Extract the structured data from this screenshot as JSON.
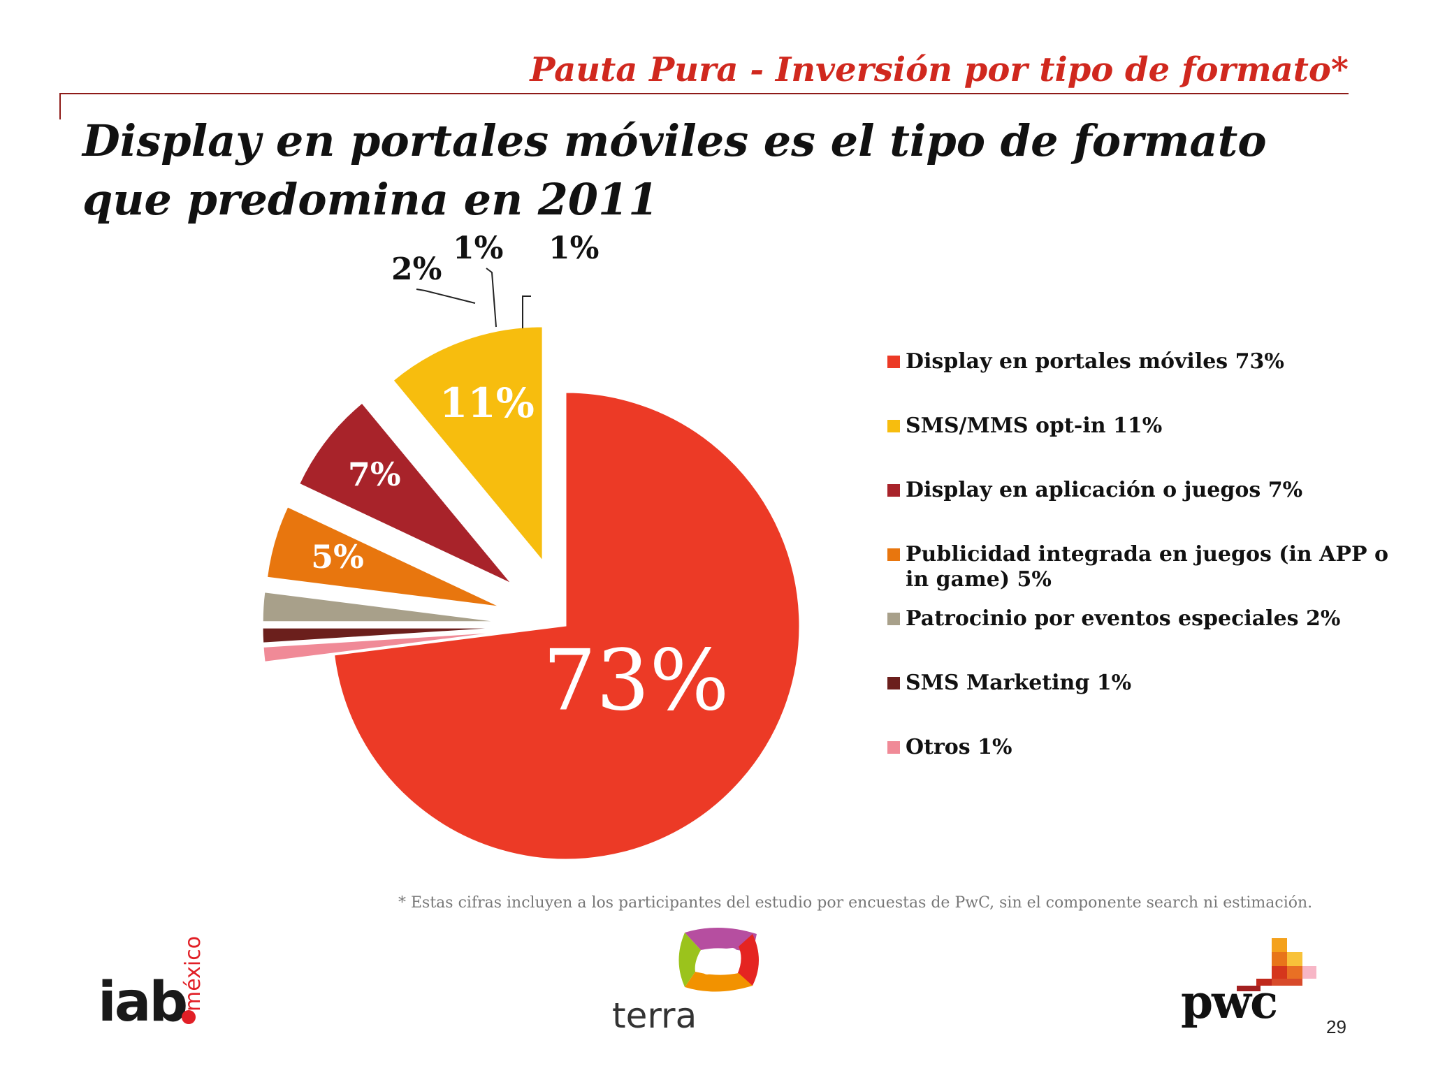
{
  "header": {
    "section_title": "Pauta Pura - Inversión por tipo de formato*",
    "headline_line1": "Display en portales móviles es el tipo de formato",
    "headline_line2": "que predomina en 2011"
  },
  "chart_data": {
    "type": "pie",
    "title": "",
    "exploded": true,
    "categories": [
      "Display en portales móviles",
      "Otros",
      "SMS Marketing",
      "Patrocinio por eventos especiales",
      "Publicidad integrada en juegos (in APP o in game)",
      "Display en aplicación o juegos",
      "SMS/MMS opt-in"
    ],
    "values": [
      73,
      1,
      1,
      2,
      5,
      7,
      11
    ],
    "labels": [
      "73%",
      "1%",
      "1%",
      "2%",
      "5%",
      "7%",
      "11%"
    ],
    "colors": [
      "#ec3a26",
      "#f08a97",
      "#6b1f1c",
      "#a8a08a",
      "#e8760e",
      "#a8232a",
      "#f7bd0e"
    ],
    "legend_position": "right"
  },
  "legend": [
    {
      "label": "Display en portales móviles 73%",
      "color": "#ec3a26"
    },
    {
      "label": "SMS/MMS opt-in 11%",
      "color": "#f7bd0e"
    },
    {
      "label": "Display en aplicación o juegos 7%",
      "color": "#a8232a"
    },
    {
      "label": "Publicidad integrada en juegos (in APP o in game) 5%",
      "color": "#e8760e"
    },
    {
      "label": "Patrocinio por eventos especiales 2%",
      "color": "#a8a08a"
    },
    {
      "label": "SMS Marketing 1%",
      "color": "#6b1f1c"
    },
    {
      "label": "Otros 1%",
      "color": "#f08a97"
    }
  ],
  "footnote": "* Estas cifras incluyen a los participantes del estudio por encuestas de PwC, sin el componente search ni estimación.",
  "logos": {
    "iab": "iab",
    "iab_region": "méxico",
    "terra": "terra",
    "pwc": "pwc"
  },
  "page_number": "29"
}
